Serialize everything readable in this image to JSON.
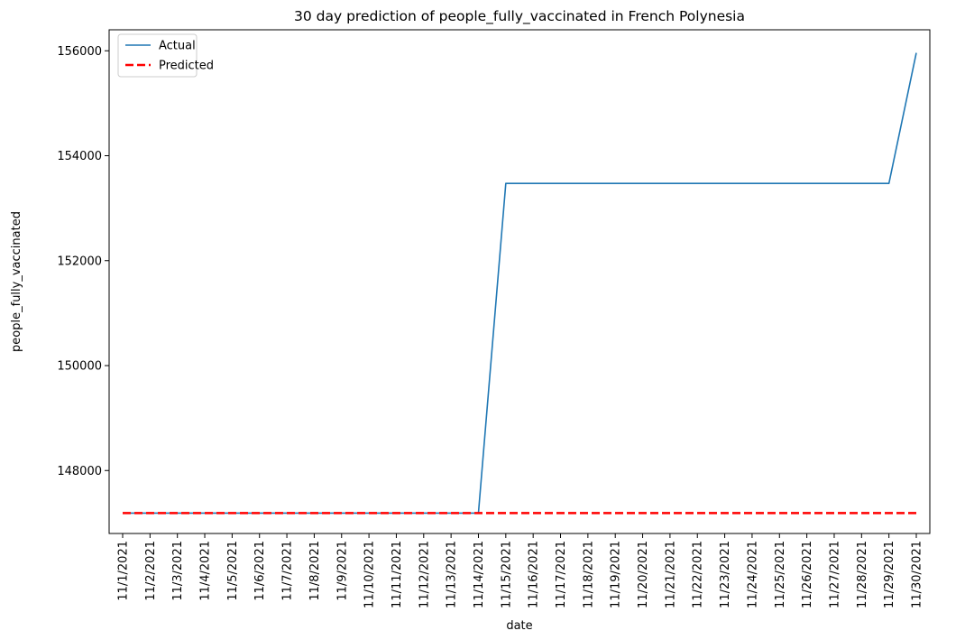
{
  "chart_data": {
    "type": "line",
    "title": "30 day prediction of people_fully_vaccinated in French Polynesia",
    "xlabel": "date",
    "ylabel": "people_fully_vaccinated",
    "x": [
      "11/1/2021",
      "11/2/2021",
      "11/3/2021",
      "11/4/2021",
      "11/5/2021",
      "11/6/2021",
      "11/7/2021",
      "11/8/2021",
      "11/9/2021",
      "11/10/2021",
      "11/11/2021",
      "11/12/2021",
      "11/13/2021",
      "11/14/2021",
      "11/15/2021",
      "11/16/2021",
      "11/17/2021",
      "11/18/2021",
      "11/19/2021",
      "11/20/2021",
      "11/21/2021",
      "11/22/2021",
      "11/23/2021",
      "11/24/2021",
      "11/25/2021",
      "11/26/2021",
      "11/27/2021",
      "11/28/2021",
      "11/29/2021",
      "11/30/2021"
    ],
    "series": [
      {
        "name": "Actual",
        "color": "#1f77b4",
        "style": "solid",
        "values": [
          147189,
          147189,
          147189,
          147189,
          147189,
          147189,
          147189,
          147189,
          147189,
          147189,
          147189,
          147189,
          147189,
          147189,
          153472,
          153472,
          153472,
          153472,
          153472,
          153472,
          153472,
          153472,
          153472,
          153472,
          153472,
          153472,
          153472,
          153472,
          153472,
          155960
        ]
      },
      {
        "name": "Predicted",
        "color": "#ff0000",
        "style": "dashed",
        "values": [
          147189,
          147189,
          147189,
          147189,
          147189,
          147189,
          147189,
          147189,
          147189,
          147189,
          147189,
          147189,
          147189,
          147189,
          147189,
          147189,
          147189,
          147189,
          147189,
          147189,
          147189,
          147189,
          147189,
          147189,
          147189,
          147189,
          147189,
          147189,
          147189,
          147189
        ]
      }
    ],
    "yticks": [
      148000,
      150000,
      152000,
      154000,
      156000
    ],
    "ylim": [
      146800,
      156400
    ],
    "grid": false,
    "legend_position": "top-left"
  }
}
